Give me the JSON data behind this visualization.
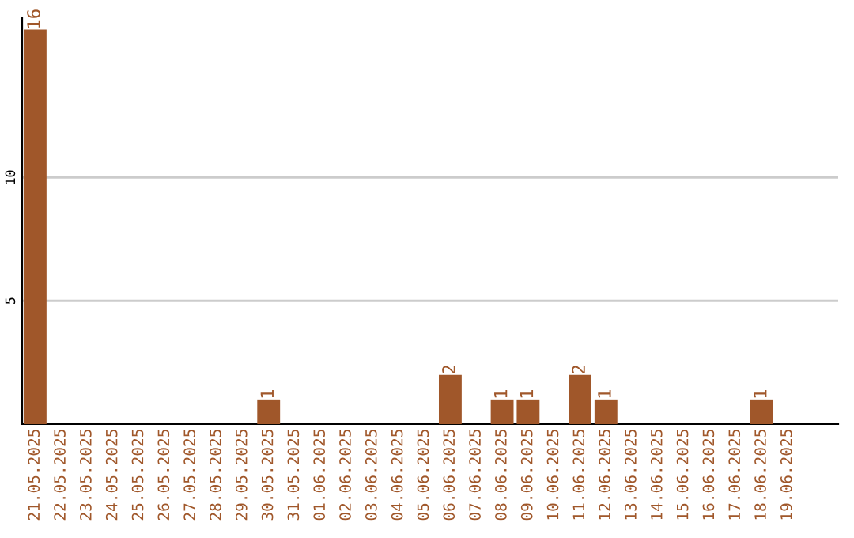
{
  "chart_data": {
    "type": "bar",
    "categories": [
      "21.05.2025",
      "22.05.2025",
      "23.05.2025",
      "24.05.2025",
      "25.05.2025",
      "26.05.2025",
      "27.05.2025",
      "28.05.2025",
      "29.05.2025",
      "30.05.2025",
      "31.05.2025",
      "01.06.2025",
      "02.06.2025",
      "03.06.2025",
      "04.06.2025",
      "05.06.2025",
      "06.06.2025",
      "07.06.2025",
      "08.06.2025",
      "09.06.2025",
      "10.06.2025",
      "11.06.2025",
      "12.06.2025",
      "13.06.2025",
      "14.06.2025",
      "15.06.2025",
      "16.06.2025",
      "17.06.2025",
      "18.06.2025",
      "19.06.2025"
    ],
    "values": [
      16,
      0,
      0,
      0,
      0,
      0,
      0,
      0,
      0,
      1,
      0,
      0,
      0,
      0,
      0,
      0,
      2,
      0,
      1,
      1,
      0,
      2,
      1,
      0,
      0,
      0,
      0,
      0,
      1,
      0
    ],
    "value_labels": [
      "16",
      null,
      null,
      null,
      null,
      null,
      null,
      null,
      null,
      "1",
      null,
      null,
      null,
      null,
      null,
      null,
      "2",
      null,
      "1",
      "1",
      null,
      "2",
      "1",
      null,
      null,
      null,
      null,
      null,
      "1",
      null
    ],
    "color": "#a0572a",
    "ylim": [
      0,
      16.5
    ],
    "yticks": [
      5,
      10
    ],
    "grid": "y"
  }
}
